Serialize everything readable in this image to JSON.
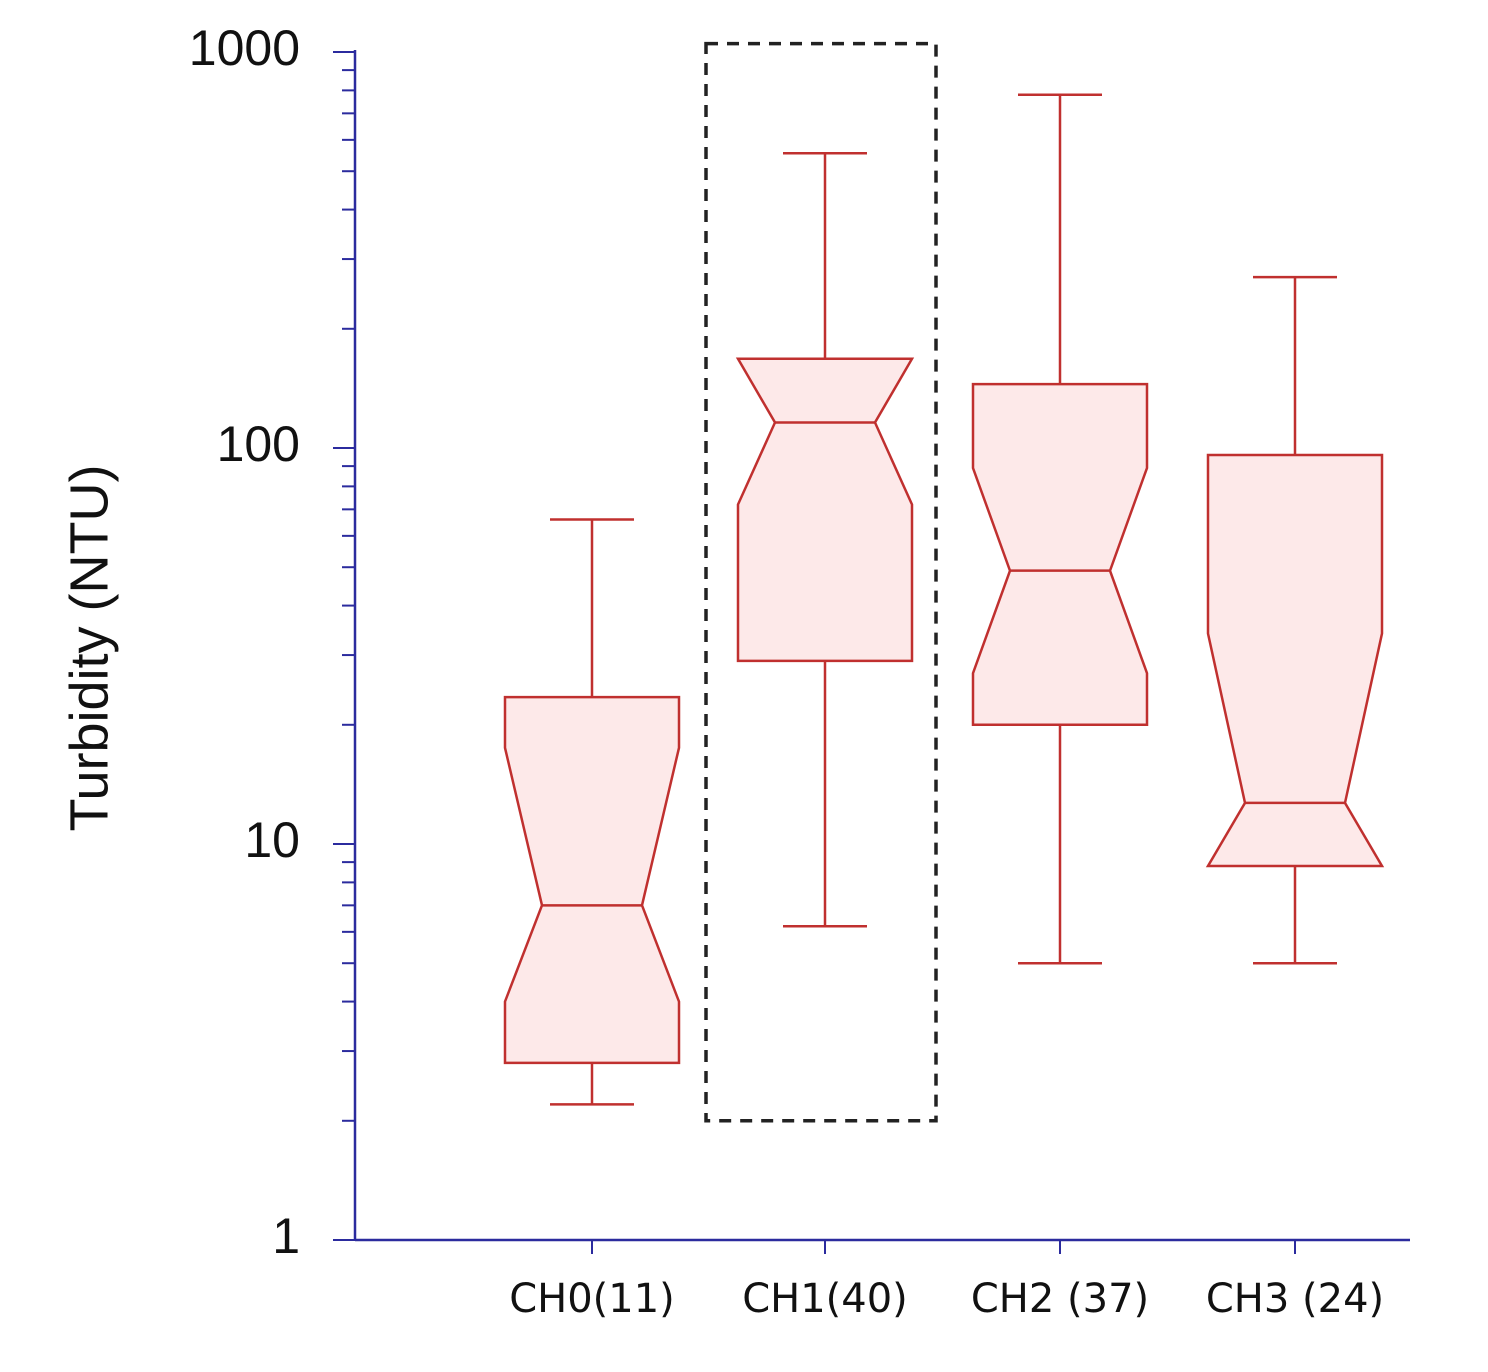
{
  "chart_data": {
    "type": "box",
    "title": "",
    "xlabel": "",
    "ylabel": "Turbidity (NTU)",
    "yscale": "log",
    "ylim": [
      1,
      1000
    ],
    "yticks": [
      "1",
      "10",
      "100",
      "1000"
    ],
    "notched": true,
    "grid": false,
    "legend": "none",
    "colors": {
      "axis": "#2b2b9e",
      "box_stroke": "#c0302f",
      "box_fill": "#fde9e9",
      "highlight": "#222222"
    },
    "categories": [
      "CH0(11)",
      "CH1(40)",
      "CH2 (37)",
      "CH3 (24)"
    ],
    "boxes": [
      {
        "category": "CH0(11)",
        "whisker_low": 2.2,
        "q1": 2.8,
        "notch_low": 4.0,
        "median": 7.0,
        "notch_high": 17.5,
        "q3": 23.5,
        "whisker_high": 66
      },
      {
        "category": "CH1(40)",
        "whisker_low": 6.2,
        "q1": 29,
        "notch_low": 72,
        "median": 116,
        "notch_high": 168,
        "q3": 168,
        "whisker_high": 555
      },
      {
        "category": "CH2 (37)",
        "whisker_low": 5.0,
        "q1": 20,
        "notch_low": 27,
        "median": 49,
        "notch_high": 89,
        "q3": 145,
        "whisker_high": 780
      },
      {
        "category": "CH3 (24)",
        "whisker_low": 5.0,
        "q1": 8.8,
        "notch_low": 8.8,
        "median": 12.7,
        "notch_high": 34,
        "q3": 96,
        "whisker_high": 270
      }
    ],
    "highlight": {
      "category": "CH1(40)",
      "style": "dashed",
      "range": [
        2.0,
        1050
      ]
    }
  }
}
